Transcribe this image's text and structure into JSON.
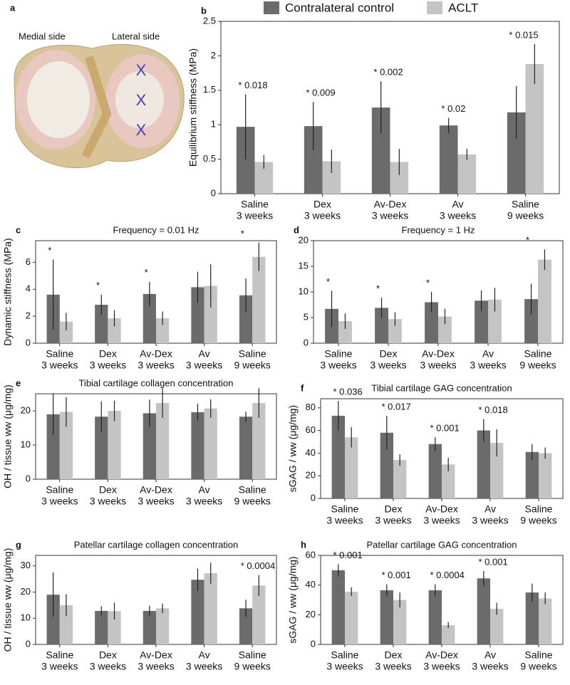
{
  "panel_a": {
    "panel": "a",
    "texts": [
      "Medial side",
      "Lateral side"
    ],
    "marks": [
      "X",
      "X",
      "X"
    ]
  },
  "chart_data": [
    {
      "type": "bar",
      "panel": "b",
      "ylabel": "Equilibrium stiffness (MPa)",
      "legend": "top",
      "categories": [
        [
          "Saline",
          "3 weeks"
        ],
        [
          "Dex",
          "3 weeks"
        ],
        [
          "Av-Dex",
          "3 weeks"
        ],
        [
          "Av",
          "3 weeks"
        ],
        [
          "Saline",
          "9 weeks"
        ]
      ],
      "series": [
        {
          "name": "Contralateral control",
          "color": "#6b6b6b",
          "values": [
            0.97,
            0.98,
            1.25,
            0.99,
            1.18
          ],
          "errors": [
            0.47,
            0.35,
            0.38,
            0.11,
            0.38
          ]
        },
        {
          "name": "ACLT",
          "color": "#c4c4c4",
          "values": [
            0.46,
            0.47,
            0.46,
            0.57,
            1.88
          ],
          "errors": [
            0.1,
            0.17,
            0.19,
            0.08,
            0.29
          ]
        }
      ],
      "ylim": [
        0,
        2.5
      ],
      "yticks": [
        0,
        0.5,
        1,
        1.5,
        2,
        2.5
      ],
      "annotations": [
        "* 0.018",
        "* 0.009",
        "* 0.002",
        "* 0.02",
        "* 0.015"
      ]
    },
    {
      "type": "bar",
      "panel": "c",
      "title": "Frequency = 0.01 Hz",
      "ylabel": "Dynamic stiffness (MPa)",
      "categories": [
        [
          "Saline",
          "3 weeks"
        ],
        [
          "Dex",
          "3 weeks"
        ],
        [
          "Av-Dex",
          "3 weeks"
        ],
        [
          "Av",
          "3 weeks"
        ],
        [
          "Saline",
          "9 weeks"
        ]
      ],
      "series": [
        {
          "color": "#6b6b6b",
          "values": [
            3.6,
            2.85,
            3.65,
            4.15,
            3.55
          ],
          "errors": [
            2.6,
            0.75,
            0.9,
            1.15,
            1.25
          ]
        },
        {
          "color": "#c4c4c4",
          "values": [
            1.6,
            1.85,
            1.85,
            4.25,
            6.4
          ],
          "errors": [
            0.65,
            0.6,
            0.5,
            1.6,
            1.05
          ]
        }
      ],
      "ylim": [
        0,
        7.6
      ],
      "yticks": [
        0,
        2,
        4,
        6
      ],
      "annotations": [
        "*",
        "*",
        "*",
        null,
        "*"
      ]
    },
    {
      "type": "bar",
      "panel": "d",
      "title": "Frequency = 1 Hz",
      "categories": [
        [
          "Saline",
          "3 weeks"
        ],
        [
          "Dex",
          "3 weeks"
        ],
        [
          "Av-Dex",
          "3 weeks"
        ],
        [
          "Av",
          "3 weeks"
        ],
        [
          "Saline",
          "9 weeks"
        ]
      ],
      "series": [
        {
          "color": "#6b6b6b",
          "values": [
            6.7,
            6.9,
            8.0,
            8.3,
            8.6
          ],
          "errors": [
            3.5,
            2.0,
            2.0,
            2.0,
            3.0
          ]
        },
        {
          "color": "#c4c4c4",
          "values": [
            4.3,
            4.7,
            5.2,
            8.5,
            16.3
          ],
          "errors": [
            1.5,
            1.3,
            1.5,
            2.3,
            2.0
          ]
        }
      ],
      "ylim": [
        0,
        20
      ],
      "yticks": [
        0,
        5,
        10,
        15,
        20
      ],
      "annotations": [
        "*",
        "*",
        "*",
        null,
        "*"
      ]
    },
    {
      "type": "bar",
      "panel": "e",
      "title": "Tibial cartilage collagen concentration",
      "ylabel": "OH / tissue ww (μg/mg)",
      "categories": [
        [
          "Saline",
          "3 weeks"
        ],
        [
          "Dex",
          "3 weeks"
        ],
        [
          "Av-Dex",
          "3 weeks"
        ],
        [
          "Av",
          "3 weeks"
        ],
        [
          "Saline",
          "9 weeks"
        ]
      ],
      "series": [
        {
          "color": "#6b6b6b",
          "values": [
            19,
            18.3,
            19.3,
            19.6,
            18.3
          ],
          "errors": [
            6,
            4.5,
            4,
            2.5,
            1.5
          ]
        },
        {
          "color": "#c4c4c4",
          "values": [
            19.7,
            20,
            22.3,
            20.7,
            22.3
          ],
          "errors": [
            4.3,
            3,
            4.3,
            2.7,
            4.3
          ]
        }
      ],
      "ylim": [
        0,
        25
      ],
      "yticks": [
        0,
        10,
        20
      ],
      "annotations": [
        null,
        null,
        null,
        null,
        null
      ]
    },
    {
      "type": "bar",
      "panel": "f",
      "title": "Tibial cartilage GAG concentration",
      "ylabel": "sGAG / ww (μg/mg)",
      "categories": [
        [
          "Saline",
          "3 weeks"
        ],
        [
          "Dex",
          "3 weeks"
        ],
        [
          "Av-Dex",
          "3 weeks"
        ],
        [
          "Av",
          "3 weeks"
        ],
        [
          "Saline",
          "9 weeks"
        ]
      ],
      "series": [
        {
          "color": "#6b6b6b",
          "values": [
            73,
            58,
            48,
            60,
            41
          ],
          "errors": [
            13,
            15,
            6,
            10,
            7
          ]
        },
        {
          "color": "#c4c4c4",
          "values": [
            54,
            34,
            30,
            49,
            40
          ],
          "errors": [
            9,
            5,
            6,
            12,
            5
          ]
        }
      ],
      "ylim": [
        0,
        88
      ],
      "yticks": [
        0,
        20,
        40,
        60,
        80
      ],
      "annotations": [
        "* 0.036",
        "* 0.017",
        "* 0.001",
        "* 0.018",
        null
      ]
    },
    {
      "type": "bar",
      "panel": "g",
      "title": "Patellar cartilage collagen concentration",
      "ylabel": "OH / tissue ww (μg/mg)",
      "categories": [
        [
          "Saline",
          "3 weeks"
        ],
        [
          "Dex",
          "3 weeks"
        ],
        [
          "Av-Dex",
          "3 weeks"
        ],
        [
          "Av",
          "3 weeks"
        ],
        [
          "Saline",
          "9 weeks"
        ]
      ],
      "series": [
        {
          "color": "#6b6b6b",
          "values": [
            19,
            12.8,
            12.8,
            24.7,
            13.8
          ],
          "errors": [
            8.5,
            1.8,
            2,
            4.3,
            3.3
          ]
        },
        {
          "color": "#c4c4c4",
          "values": [
            15,
            12.7,
            13.8,
            27.2,
            22.5
          ],
          "errors": [
            4.2,
            3.2,
            1.8,
            4,
            4
          ]
        }
      ],
      "ylim": [
        0,
        34
      ],
      "yticks": [
        0,
        10,
        20,
        30
      ],
      "annotations": [
        null,
        null,
        null,
        null,
        "* 0.0004"
      ]
    },
    {
      "type": "bar",
      "panel": "h",
      "title": "Patellar cartilage GAG concentration",
      "ylabel": "sGAG / ww (μg/mg)",
      "categories": [
        [
          "Saline",
          "3 weeks"
        ],
        [
          "Dex",
          "3 weeks"
        ],
        [
          "Av-Dex",
          "3 weeks"
        ],
        [
          "Av",
          "3 weeks"
        ],
        [
          "Saline",
          "9 weeks"
        ]
      ],
      "series": [
        {
          "color": "#6b6b6b",
          "values": [
            50,
            36.5,
            36.5,
            44.5,
            35
          ],
          "errors": [
            4,
            4,
            4,
            5,
            6
          ]
        },
        {
          "color": "#c4c4c4",
          "values": [
            35.5,
            30,
            13,
            24,
            31
          ],
          "errors": [
            3,
            5,
            2,
            4,
            4
          ]
        }
      ],
      "ylim": [
        0,
        60
      ],
      "yticks": [
        0,
        20,
        40,
        60
      ],
      "annotations": [
        "* 0.001",
        "* 0.001",
        "* 0.0004",
        "* 0.001",
        null
      ]
    }
  ]
}
